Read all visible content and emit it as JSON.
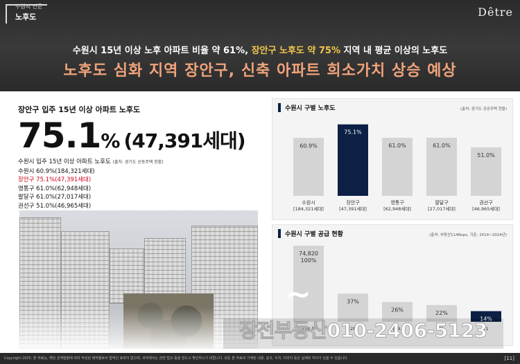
{
  "header": {
    "brand_sub": "수원시 인문",
    "brand_main": "노후도",
    "logo": "Dêtre",
    "headline1_pre": "수원시 15년 이상 노후 아파트 비율 약 61%, ",
    "headline1_hl": "장안구 노후도 약 75%",
    "headline1_post": " 지역 내 평균 이상의 노후도",
    "headline2": "노후도 심화 지역 장안구, 신축 아파트 희소가치 상승 예상"
  },
  "left": {
    "title": "장안구 입주 15년 이상 아파트 노후도",
    "big_value": "75.1",
    "big_unit": "%",
    "big_paren": "(47,391세대)",
    "stats_heading": "수원시 입주 15년 이상 아파트 노후도",
    "stats_source": "(출처: 경기도 공동주택 현황)",
    "rows": [
      "수원시 60.9%(184,321세대)",
      "장안구 75.1%(47,391세대)",
      "영통구 61.0%(62,948세대)",
      "팔달구 61.0%(27,017세대)",
      "권선구 51.0%(46,965세대)"
    ]
  },
  "panel1": {
    "title": "수원시 구별 노후도",
    "source": "(출처: 경기도 공공주택 현황)"
  },
  "panel2": {
    "title": "수원시 구별 공급 현황",
    "source": "(출처: 부동산114Reps, 기준: 2014~2024년)"
  },
  "chart_data": [
    {
      "type": "bar",
      "title": "수원시 구별 노후도",
      "categories": [
        "수원시",
        "장안구",
        "영통구",
        "팔달구",
        "권선구"
      ],
      "category_sublabels": [
        "[184,321세대]",
        "[47,391세대]",
        "[62,948세대]",
        "[27,017세대]",
        "[46,965세대]"
      ],
      "values": [
        60.9,
        75.1,
        61.0,
        61.0,
        51.0
      ],
      "value_labels": [
        "60.9%",
        "75.1%",
        "61.0%",
        "61.0%",
        "51.0%"
      ],
      "ylim": [
        0,
        80
      ],
      "highlight_index": 1,
      "colors": {
        "bar": "#d4d4d4",
        "highlight": "#0c2045",
        "label": "#333333",
        "highlight_label": "#ffffff"
      }
    },
    {
      "type": "bar",
      "title": "수원시 구별 공급 현황",
      "categories": [
        "",
        "",
        "",
        "",
        ""
      ],
      "category_sublabels": [
        "[74,8",
        "[28,",
        "[19,",
        "[1",
        "[1"
      ],
      "values": [
        100,
        37,
        26,
        22,
        14
      ],
      "value_labels": [
        "74,820\n100%",
        "37%",
        "26%",
        "22%",
        "14%"
      ],
      "ylim": [
        0,
        100
      ],
      "highlight_index": 4,
      "colors": {
        "bar": "#d4d4d4",
        "highlight": "#0c2045",
        "label": "#333333",
        "highlight_label": "#ffffff"
      }
    }
  ],
  "watermark": "장전부동산010-2406-5123",
  "tilde": "~",
  "footer": {
    "text": "Copyright 2025. 본 자료는, 해당 관계법령에 따라 작성된 제작물로서 법적인 효력이 없으며, 귀하께서는 관련 법규 등을 반드시 확인하시기 바랍니다. 모든 본 자료의 기재된 내용, 광고, 수치, 이미지 등은 실제와 차이가 있을 수 있습니다.",
    "page": "[11]"
  }
}
